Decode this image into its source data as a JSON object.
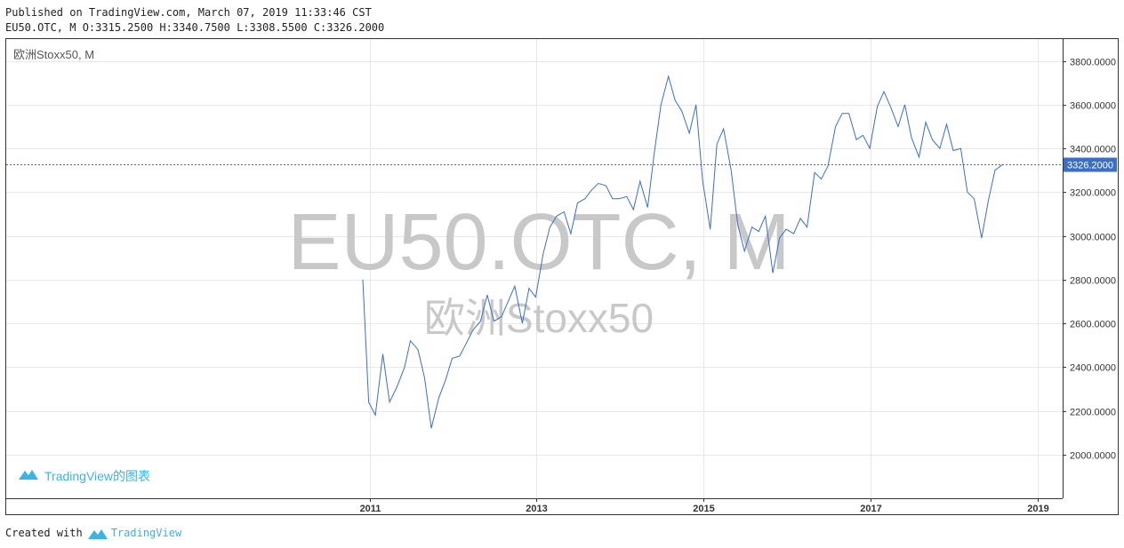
{
  "header": {
    "published": "Published on TradingView.com, March 07, 2019 11:33:46 CST",
    "ohlc": "EU50.OTC, M O:3315.2500 H:3340.7500 L:3308.5500 C:3326.2000"
  },
  "footer": {
    "created_with": "Created with",
    "brand": "TradingView"
  },
  "chart_data": {
    "type": "line",
    "symbol_label": "欧洲Stoxx50, M",
    "watermark_symbol": "EU50.OTC, M",
    "watermark_name": "欧洲Stoxx50",
    "branding": "TradingView的图表",
    "last_price_label": "3326.2000",
    "last_price": 3326.2,
    "ylim": [
      1800,
      3900
    ],
    "yticks": [
      {
        "value": 2000,
        "label": "2000.0000"
      },
      {
        "value": 2200,
        "label": "2200.0000"
      },
      {
        "value": 2400,
        "label": "2400.0000"
      },
      {
        "value": 2600,
        "label": "2600.0000"
      },
      {
        "value": 2800,
        "label": "2800.0000"
      },
      {
        "value": 3000,
        "label": "3000.0000"
      },
      {
        "value": 3200,
        "label": "3200.0000"
      },
      {
        "value": 3400,
        "label": "3400.0000"
      },
      {
        "value": 3600,
        "label": "3600.0000"
      },
      {
        "value": 3800,
        "label": "3800.0000"
      }
    ],
    "xlim": [
      2006.65,
      2019.3
    ],
    "xticks": [
      {
        "value": 2011,
        "label": "2011"
      },
      {
        "value": 2013,
        "label": "2013"
      },
      {
        "value": 2015,
        "label": "2015"
      },
      {
        "value": 2017,
        "label": "2017"
      },
      {
        "value": 2019,
        "label": "2019"
      }
    ],
    "series": [
      {
        "color": "#3a6fc4",
        "points": [
          [
            2010.92,
            2800
          ],
          [
            2010.99,
            2240
          ],
          [
            2011.07,
            2180
          ],
          [
            2011.16,
            2460
          ],
          [
            2011.24,
            2240
          ],
          [
            2011.33,
            2310
          ],
          [
            2011.42,
            2400
          ],
          [
            2011.49,
            2520
          ],
          [
            2011.58,
            2480
          ],
          [
            2011.66,
            2350
          ],
          [
            2011.74,
            2120
          ],
          [
            2011.83,
            2260
          ],
          [
            2011.91,
            2340
          ],
          [
            2011.99,
            2440
          ],
          [
            2012.08,
            2450
          ],
          [
            2012.16,
            2510
          ],
          [
            2012.24,
            2570
          ],
          [
            2012.33,
            2610
          ],
          [
            2012.41,
            2730
          ],
          [
            2012.49,
            2610
          ],
          [
            2012.58,
            2630
          ],
          [
            2012.66,
            2700
          ],
          [
            2012.74,
            2770
          ],
          [
            2012.83,
            2600
          ],
          [
            2012.91,
            2760
          ],
          [
            2012.99,
            2720
          ],
          [
            2013.08,
            2920
          ],
          [
            2013.16,
            3040
          ],
          [
            2013.24,
            3090
          ],
          [
            2013.33,
            3110
          ],
          [
            2013.41,
            3010
          ],
          [
            2013.49,
            3150
          ],
          [
            2013.58,
            3170
          ],
          [
            2013.66,
            3210
          ],
          [
            2013.74,
            3240
          ],
          [
            2013.83,
            3230
          ],
          [
            2013.91,
            3170
          ],
          [
            2013.99,
            3170
          ],
          [
            2014.08,
            3180
          ],
          [
            2014.16,
            3120
          ],
          [
            2014.24,
            3250
          ],
          [
            2014.33,
            3130
          ],
          [
            2014.41,
            3380
          ],
          [
            2014.49,
            3600
          ],
          [
            2014.58,
            3730
          ],
          [
            2014.66,
            3620
          ],
          [
            2014.74,
            3570
          ],
          [
            2014.83,
            3470
          ],
          [
            2014.91,
            3600
          ],
          [
            2014.99,
            3250
          ],
          [
            2015.08,
            3030
          ],
          [
            2015.16,
            3420
          ],
          [
            2015.24,
            3490
          ],
          [
            2015.33,
            3300
          ],
          [
            2015.41,
            3050
          ],
          [
            2015.49,
            2930
          ],
          [
            2015.58,
            3040
          ],
          [
            2015.66,
            3020
          ],
          [
            2015.74,
            3090
          ],
          [
            2015.83,
            2830
          ],
          [
            2015.91,
            2990
          ],
          [
            2015.99,
            3030
          ],
          [
            2016.08,
            3010
          ],
          [
            2016.16,
            3080
          ],
          [
            2016.24,
            3040
          ],
          [
            2016.33,
            3290
          ],
          [
            2016.41,
            3260
          ],
          [
            2016.49,
            3320
          ],
          [
            2016.58,
            3500
          ],
          [
            2016.66,
            3560
          ],
          [
            2016.74,
            3560
          ],
          [
            2016.83,
            3440
          ],
          [
            2016.91,
            3460
          ],
          [
            2016.99,
            3400
          ],
          [
            2017.08,
            3590
          ],
          [
            2017.16,
            3660
          ],
          [
            2017.24,
            3590
          ],
          [
            2017.33,
            3500
          ],
          [
            2017.41,
            3600
          ],
          [
            2017.49,
            3450
          ],
          [
            2017.58,
            3360
          ],
          [
            2017.66,
            3520
          ],
          [
            2017.74,
            3440
          ],
          [
            2017.83,
            3400
          ],
          [
            2017.91,
            3510
          ],
          [
            2017.99,
            3390
          ],
          [
            2018.08,
            3400
          ],
          [
            2018.16,
            3200
          ],
          [
            2018.24,
            3170
          ],
          [
            2018.33,
            2990
          ],
          [
            2018.41,
            3160
          ],
          [
            2018.49,
            3300
          ],
          [
            2018.58,
            3326
          ]
        ]
      }
    ]
  }
}
